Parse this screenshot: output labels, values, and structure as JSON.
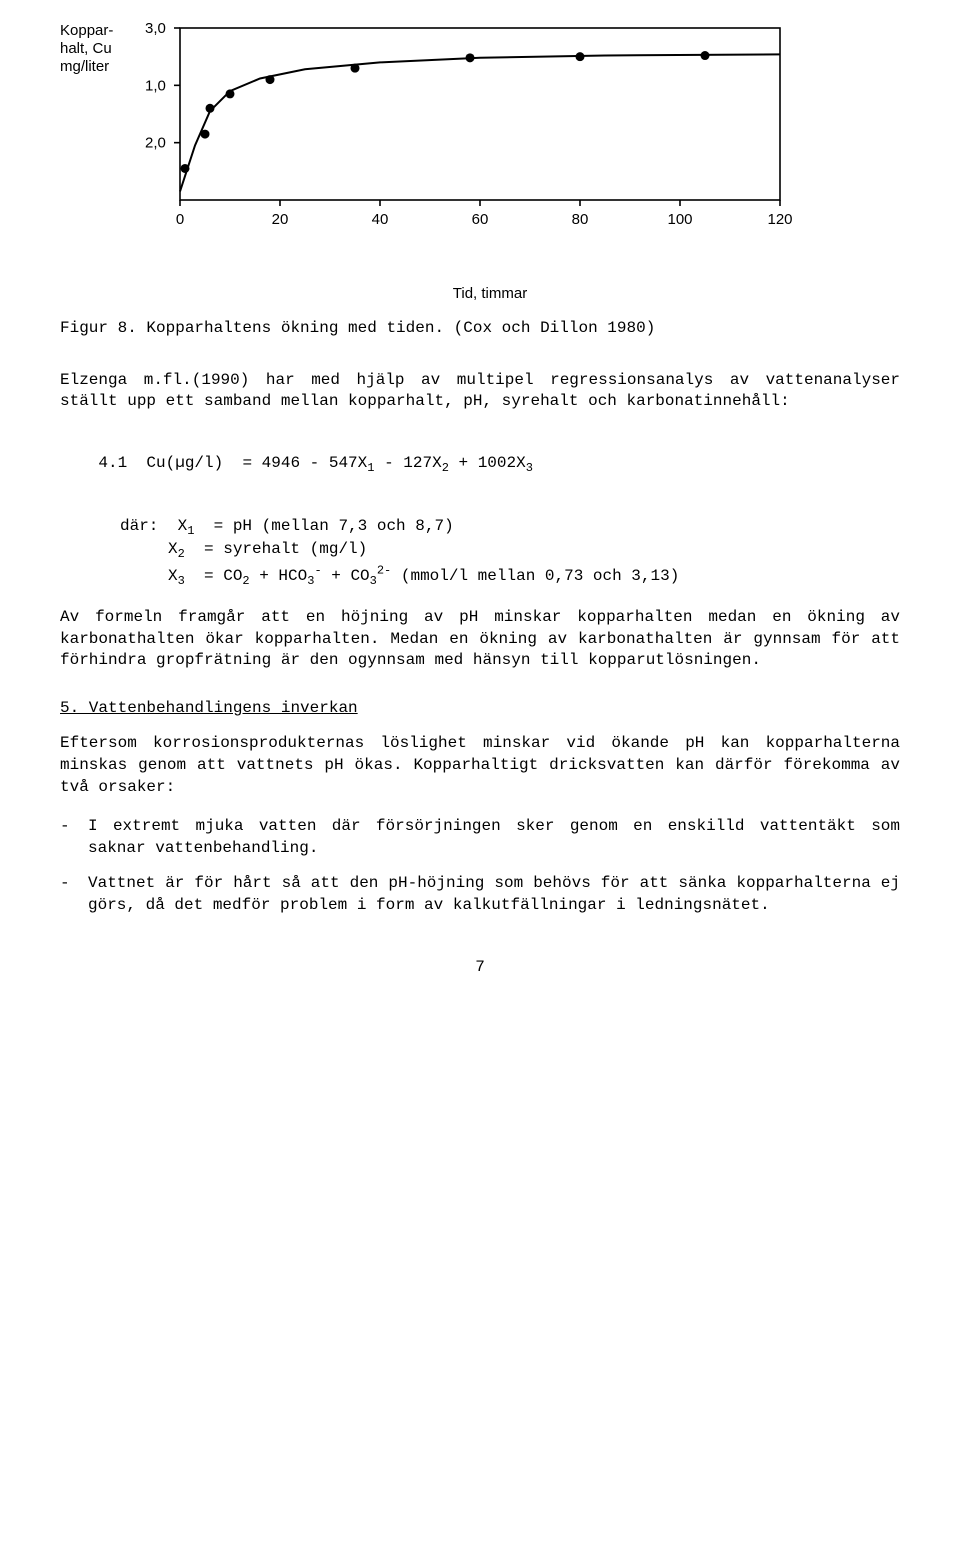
{
  "chart": {
    "type": "scatter-line",
    "y_axis_label_lines": [
      "Koppar-",
      "halt, Cu",
      "mg/liter"
    ],
    "y_ticks": [
      {
        "value": 3.0,
        "label": "3,0"
      },
      {
        "value": 2.0,
        "label": "2,0"
      },
      {
        "value": 1.0,
        "label": "1,0"
      }
    ],
    "x_ticks": [
      {
        "value": 0,
        "label": "0"
      },
      {
        "value": 20,
        "label": "20"
      },
      {
        "value": 40,
        "label": "40"
      },
      {
        "value": 60,
        "label": "60"
      },
      {
        "value": 80,
        "label": "80"
      },
      {
        "value": 100,
        "label": "100"
      },
      {
        "value": 120,
        "label": "120"
      }
    ],
    "x_axis_label": "Tid, timmar",
    "xlim": [
      0,
      120
    ],
    "ylim": [
      0,
      3.0
    ],
    "points": [
      {
        "x": 1,
        "y": 0.55
      },
      {
        "x": 5,
        "y": 1.15
      },
      {
        "x": 6,
        "y": 1.6
      },
      {
        "x": 10,
        "y": 1.85
      },
      {
        "x": 18,
        "y": 2.1
      },
      {
        "x": 35,
        "y": 2.3
      },
      {
        "x": 58,
        "y": 2.48
      },
      {
        "x": 80,
        "y": 2.5
      },
      {
        "x": 105,
        "y": 2.52
      }
    ],
    "curve": [
      {
        "x": 0,
        "y": 0.15
      },
      {
        "x": 3,
        "y": 0.95
      },
      {
        "x": 6,
        "y": 1.55
      },
      {
        "x": 10,
        "y": 1.9
      },
      {
        "x": 16,
        "y": 2.12
      },
      {
        "x": 25,
        "y": 2.28
      },
      {
        "x": 40,
        "y": 2.4
      },
      {
        "x": 60,
        "y": 2.48
      },
      {
        "x": 85,
        "y": 2.52
      },
      {
        "x": 120,
        "y": 2.54
      }
    ],
    "line_color": "#000000",
    "line_width": 2,
    "marker_color": "#000000",
    "marker_radius": 4.5,
    "background_color": "#ffffff",
    "label_fontsize": 15,
    "tick_fontsize": 15
  },
  "figure_caption": "Figur 8. Kopparhaltens ökning med tiden. (Cox och Dillon 1980)",
  "para1": "Elzenga m.fl.(1990) har med hjälp av multipel regressionsanalys av vattenanalyser ställt upp ett samband mellan kopparhalt, pH, syrehalt och karbonatinnehåll:",
  "equation": {
    "label": "4.1",
    "body_html": "Cu(µg/l)  = 4946 - 547X<sub>1</sub> - 127X<sub>2</sub> + 1002X<sub>3</sub>"
  },
  "where": {
    "lead": "där:",
    "rows": [
      {
        "lhs_html": "X<sub>1</sub>",
        "rhs_html": "= pH (mellan 7,3 och 8,7)"
      },
      {
        "lhs_html": "X<sub>2</sub>",
        "rhs_html": "= syrehalt (mg/l)"
      },
      {
        "lhs_html": "X<sub>3</sub>",
        "rhs_html": "= CO<sub>2</sub> + HCO<sub>3</sub><sup>-</sup> + CO<sub>3</sub><sup>2-</sup> (mmol/l mellan 0,73 och 3,13)"
      }
    ]
  },
  "para2": "Av formeln framgår att en höjning av pH minskar kopparhalten medan en ökning av karbonathalten ökar kopparhalten. Medan en ökning av karbo­nathalten är gynnsam för att förhindra gropfrätning är den ogynnsam med hänsyn till kopparutlösningen.",
  "section5_title": "5. Vattenbehandlingens inverkan",
  "para3": "Eftersom korrosionsprodukternas löslighet minskar vid ökande pH kan kopparhalterna minskas genom att vattnets pH ökas. Kopparhaltigt dricksvatten kan därför förekomma av två orsaker:",
  "bullet1": "I extremt mjuka vatten där försörjningen sker genom en enskilld vattentäkt som saknar vattenbehandling.",
  "bullet2": "Vattnet är för hårt så att den pH-höjning som behövs för att sänka kopparhalterna ej görs, då det medför problem i form av kalkutfäll­ningar i ledningsnätet.",
  "page_number": "7"
}
